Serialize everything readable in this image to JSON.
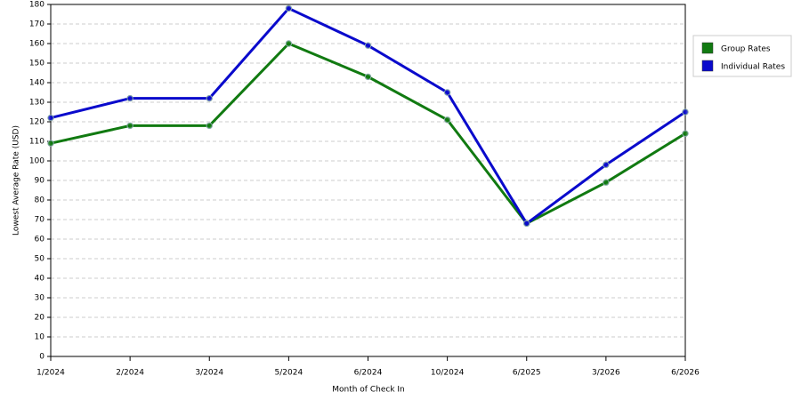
{
  "chart_data": {
    "type": "line",
    "x_label": "Month of Check In",
    "y_label": "Lowest Average Rate (USD)",
    "categories": [
      "1/2024",
      "2/2024",
      "3/2024",
      "5/2024",
      "6/2024",
      "10/2024",
      "6/2025",
      "3/2026",
      "6/2026"
    ],
    "series": [
      {
        "name": "Group Rates",
        "color": "#117a11",
        "values": [
          109,
          118,
          118,
          160,
          143,
          121,
          68,
          89,
          114
        ]
      },
      {
        "name": "Individual Rates",
        "color": "#0a0acc",
        "values": [
          122,
          132,
          132,
          178,
          159,
          135,
          68,
          98,
          125
        ]
      }
    ],
    "ylim": [
      0,
      180
    ],
    "yticks": [
      0,
      10,
      20,
      30,
      40,
      50,
      60,
      70,
      80,
      90,
      100,
      110,
      120,
      130,
      140,
      150,
      160,
      170,
      180
    ],
    "grid": true,
    "legend": "right"
  }
}
